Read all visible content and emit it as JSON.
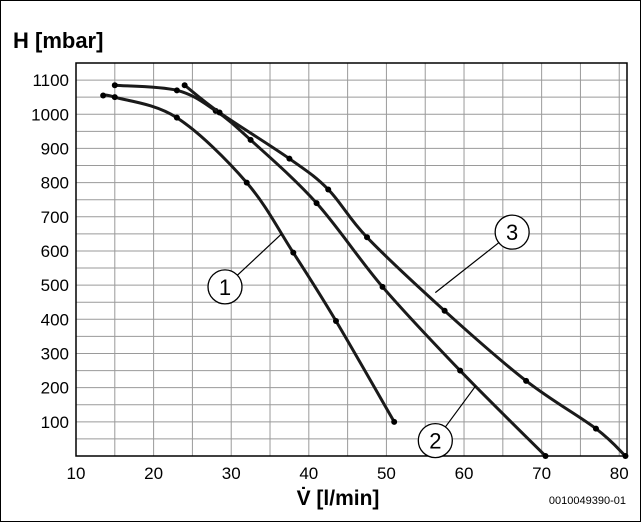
{
  "chart_data": {
    "type": "line",
    "title": "H [mbar]",
    "xlabel": "V̇ [l/min]",
    "ylabel": "H [mbar]",
    "xlim": [
      10,
      81
    ],
    "ylim": [
      0,
      1150
    ],
    "x_ticks": [
      "10",
      "20",
      "30",
      "40",
      "50",
      "60",
      "70",
      "80"
    ],
    "y_ticks": [
      "100",
      "200",
      "300",
      "400",
      "500",
      "600",
      "700",
      "800",
      "900",
      "1000",
      "1100"
    ],
    "grid": true,
    "legend": "callouts",
    "series": [
      {
        "name": "1",
        "x": [
          13.5,
          15,
          23,
          32,
          38,
          43.5,
          51
        ],
        "y": [
          1055,
          1050,
          990,
          800,
          595,
          395,
          100
        ]
      },
      {
        "name": "2",
        "x": [
          15,
          23,
          28,
          32.5,
          41,
          49.5,
          59.5,
          70.5
        ],
        "y": [
          1085,
          1070,
          1010,
          925,
          740,
          495,
          250,
          0
        ]
      },
      {
        "name": "3",
        "x": [
          24,
          28.5,
          37.5,
          42.5,
          47.5,
          57.5,
          68,
          77,
          80.8
        ],
        "y": [
          1085,
          1005,
          870,
          780,
          640,
          425,
          220,
          80,
          0
        ]
      }
    ],
    "callout_labels": [
      "1",
      "2",
      "3"
    ],
    "image_code": "0010049390-01"
  }
}
